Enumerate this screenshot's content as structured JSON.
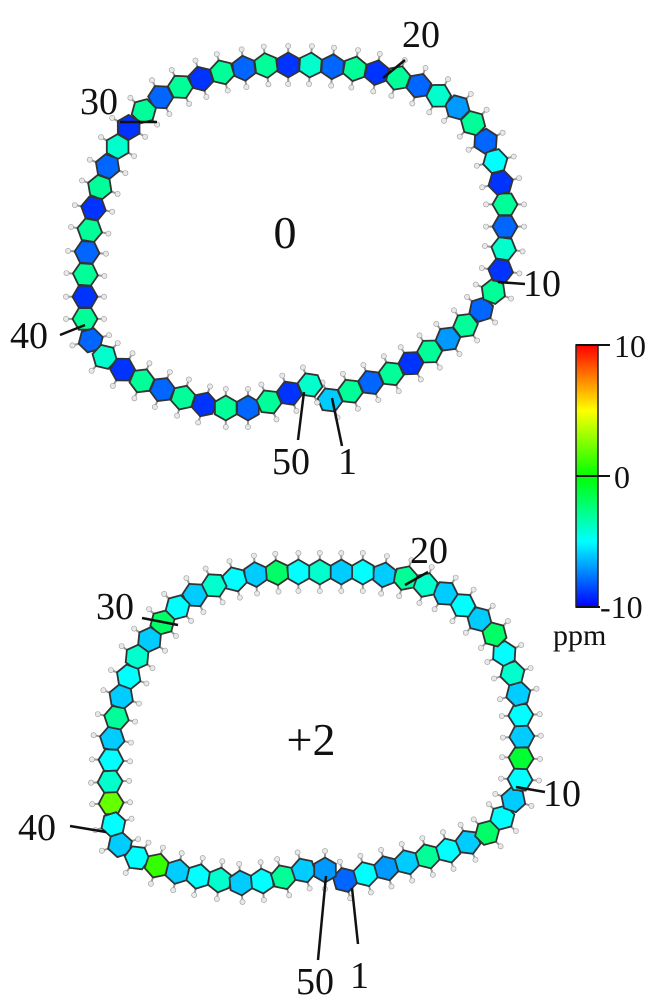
{
  "panels": [
    {
      "charge_label": "0",
      "labels": {
        "n1": "1",
        "n10": "10",
        "n20": "20",
        "n30": "30",
        "n40": "40",
        "n50": "50"
      },
      "ring_values": [
        -6,
        -3,
        -8,
        -3,
        -9,
        -3,
        -7,
        -3,
        -8,
        -3,
        -9,
        -4,
        -8,
        -3,
        -9,
        -5,
        -8,
        -3,
        -7,
        -4,
        -8,
        -3,
        -9,
        -3,
        -8,
        -4,
        -9,
        -3,
        -8,
        -3,
        -9,
        -3,
        -8,
        -3,
        -9,
        -4,
        -8,
        -3,
        -9,
        -3,
        -8,
        -3,
        -9,
        -3,
        -8,
        -4,
        -9,
        -3,
        -8,
        -3,
        -9,
        -3,
        -8,
        -3,
        -9,
        -4
      ]
    },
    {
      "charge_label": "+2",
      "labels": {
        "n1": "1",
        "n10": "10",
        "n20": "20",
        "n30": "30",
        "n40": "40",
        "n50": "50"
      },
      "ring_values": [
        -8,
        -5,
        -7,
        -6,
        -3,
        -5,
        -6,
        -2,
        -5,
        -6,
        -5,
        -1,
        -6,
        -5,
        -6,
        -4,
        -5,
        -2,
        -6,
        -5,
        -6,
        -4,
        -3,
        -6,
        -5,
        -6,
        -4,
        -5,
        -2,
        -6,
        -5,
        -4,
        -6,
        -5,
        -2,
        -6,
        -4,
        -5,
        -6,
        -3,
        -6,
        -5,
        -4,
        2,
        -5,
        -6,
        -5,
        1,
        -6,
        -5,
        -4,
        -6,
        -5,
        -3,
        -6,
        -7
      ]
    }
  ],
  "colorbar": {
    "max_label": "10",
    "mid_label": "0",
    "min_label": "-10",
    "unit_label": "ppm",
    "range": [
      -10,
      10
    ],
    "stops": [
      "#0000ff",
      "#00ffff",
      "#00ff00",
      "#ffff00",
      "#ff0000"
    ]
  }
}
